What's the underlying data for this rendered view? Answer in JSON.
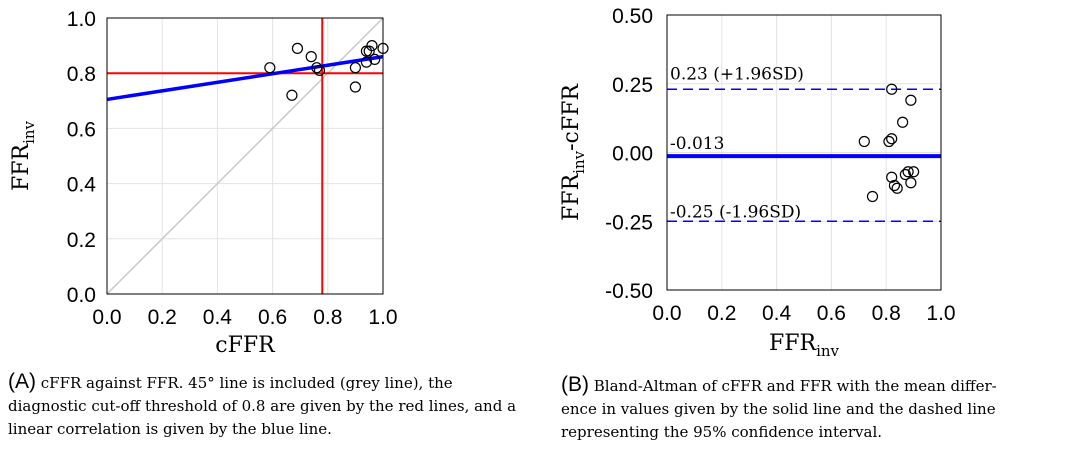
{
  "chart_data": [
    {
      "type": "scatter",
      "panel": "A",
      "xlabel": "cFFR",
      "ylabel": {
        "main": "FFR",
        "subscript": "inv"
      },
      "xlim": [
        0,
        1
      ],
      "ylim": [
        0,
        1
      ],
      "xticks": [
        "0.0",
        "0.2",
        "0.4",
        "0.6",
        "0.8",
        "1.0"
      ],
      "yticks": [
        "0.0",
        "0.2",
        "0.4",
        "0.6",
        "0.8",
        "1.0"
      ],
      "grid": true,
      "identity_line": {
        "from": [
          0,
          0
        ],
        "to": [
          1,
          1
        ],
        "color": "#c8c8c8"
      },
      "threshold": {
        "value": 0.78,
        "y_value": 0.8,
        "color": "#ff0000"
      },
      "fit_line": {
        "points": [
          [
            0,
            0.705
          ],
          [
            1,
            0.86
          ]
        ],
        "color": "#0000ff"
      },
      "points": [
        [
          0.59,
          0.82
        ],
        [
          0.67,
          0.72
        ],
        [
          0.69,
          0.89
        ],
        [
          0.74,
          0.86
        ],
        [
          0.76,
          0.82
        ],
        [
          0.77,
          0.81
        ],
        [
          0.9,
          0.82
        ],
        [
          0.9,
          0.75
        ],
        [
          0.94,
          0.84
        ],
        [
          0.94,
          0.88
        ],
        [
          0.95,
          0.88
        ],
        [
          0.96,
          0.9
        ],
        [
          0.97,
          0.85
        ],
        [
          1.0,
          0.89
        ]
      ]
    },
    {
      "type": "scatter",
      "panel": "B",
      "xlabel": {
        "main": "FFR",
        "subscript": "inv"
      },
      "ylabel": {
        "main": "FFR",
        "subscript": "inv",
        "suffix": "-cFFR"
      },
      "xlim": [
        0,
        1
      ],
      "ylim": [
        -0.5,
        0.5
      ],
      "xticks": [
        "0.0",
        "0.2",
        "0.4",
        "0.6",
        "0.8",
        "1.0"
      ],
      "yticks": [
        "0.50",
        "0.25",
        "0.00",
        "-0.25",
        "-0.50"
      ],
      "grid": true,
      "mean_line": {
        "value": -0.013,
        "label": "-0.013",
        "color": "#0000ff"
      },
      "upper_limit": {
        "value": 0.23,
        "label": "0.23 (+1.96SD)",
        "color": "#0000ff"
      },
      "lower_limit": {
        "value": -0.25,
        "label": "-0.25 (-1.96SD)",
        "color": "#0000ff"
      },
      "points": [
        [
          0.72,
          0.04
        ],
        [
          0.75,
          -0.16
        ],
        [
          0.81,
          0.04
        ],
        [
          0.82,
          0.23
        ],
        [
          0.82,
          0.05
        ],
        [
          0.82,
          -0.09
        ],
        [
          0.83,
          -0.12
        ],
        [
          0.84,
          -0.13
        ],
        [
          0.86,
          0.11
        ],
        [
          0.87,
          -0.08
        ],
        [
          0.88,
          -0.07
        ],
        [
          0.89,
          0.19
        ],
        [
          0.89,
          -0.11
        ],
        [
          0.9,
          -0.07
        ]
      ]
    }
  ],
  "captions": {
    "a": {
      "tag": "(A)",
      "text": "cFFR against FFR. 45° line is included (grey line), the diagnostic cut-off threshold of 0.8 are given by the red lines, and a linear correlation is given by the blue line."
    },
    "b": {
      "tag": "(B)",
      "line1": "Bland-Altman of cFFR and FFR with the mean differ-",
      "line2": "ence in values given by the solid line and the dashed line",
      "line3": "representing the 95% confidence interval."
    }
  }
}
